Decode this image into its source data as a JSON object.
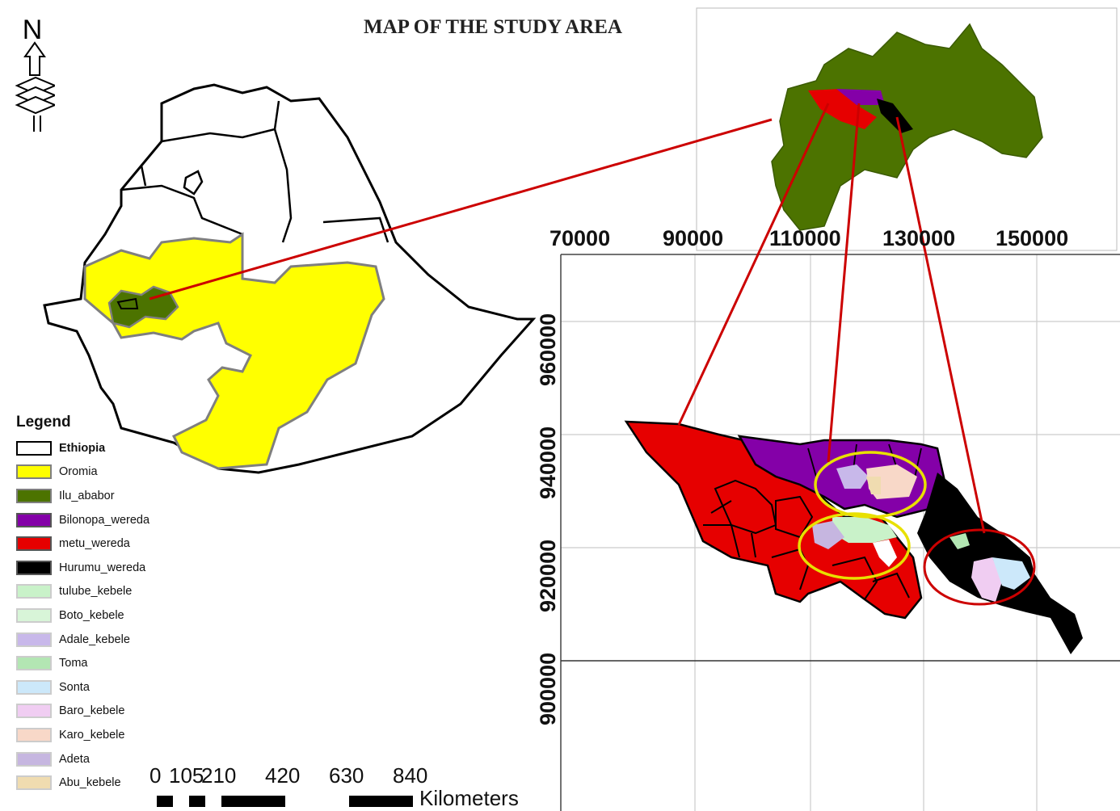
{
  "title": "MAP OF THE STUDY AREA",
  "north_label": "N",
  "legend": {
    "title": "Legend",
    "items": [
      {
        "label": "Ethiopia",
        "fill": "#ffffff",
        "border": "#000000",
        "bold": true
      },
      {
        "label": "Oromia",
        "fill": "#ffff00",
        "border": "#7f7f7f",
        "bold": false
      },
      {
        "label": "Ilu_ababor",
        "fill": "#4c7300",
        "border": "#7f7f7f",
        "bold": false
      },
      {
        "label": "Bilonopa_wereda",
        "fill": "#8400a8",
        "border": "#555555",
        "bold": false
      },
      {
        "label": "metu_wereda",
        "fill": "#e60000",
        "border": "#555555",
        "bold": false
      },
      {
        "label": "Hurumu_wereda",
        "fill": "#000000",
        "border": "#555555",
        "bold": false
      },
      {
        "label": "tulube_kebele",
        "fill": "#c9f2c9",
        "border": "#cccccc",
        "bold": false
      },
      {
        "label": "Boto_kebele",
        "fill": "#d8f5d8",
        "border": "#cccccc",
        "bold": false
      },
      {
        "label": "Adale_kebele",
        "fill": "#c8b8ea",
        "border": "#cccccc",
        "bold": false
      },
      {
        "label": "Toma",
        "fill": "#b3e6b3",
        "border": "#cccccc",
        "bold": false
      },
      {
        "label": "Sonta",
        "fill": "#cce8fa",
        "border": "#cccccc",
        "bold": false
      },
      {
        "label": "Baro_kebele",
        "fill": "#f0cdf2",
        "border": "#cccccc",
        "bold": false
      },
      {
        "label": "Karo_kebele",
        "fill": "#f8d8c8",
        "border": "#cccccc",
        "bold": false
      },
      {
        "label": "Adeta",
        "fill": "#c6b6e0",
        "border": "#cccccc",
        "bold": false
      },
      {
        "label": "Abu_kebele",
        "fill": "#f0dcb0",
        "border": "#cccccc",
        "bold": false
      }
    ]
  },
  "scalebar": {
    "ticks": [
      "0",
      "105",
      "210",
      "420",
      "630",
      "840"
    ],
    "unit": "Kilometers"
  },
  "grid": {
    "x_labels": [
      "70000",
      "90000",
      "110000",
      "130000",
      "150000"
    ],
    "y_labels": [
      "960000",
      "940000",
      "920000",
      "900000"
    ]
  },
  "colors": {
    "oromia": "#ffff00",
    "ilu_ababor": "#4c7300",
    "bilonopa": "#8400a8",
    "metu": "#e60000",
    "hurumu": "#000000",
    "connector": "#cc0000",
    "ellipse_yellow": "#e8e000",
    "ellipse_red": "#cc0000"
  }
}
